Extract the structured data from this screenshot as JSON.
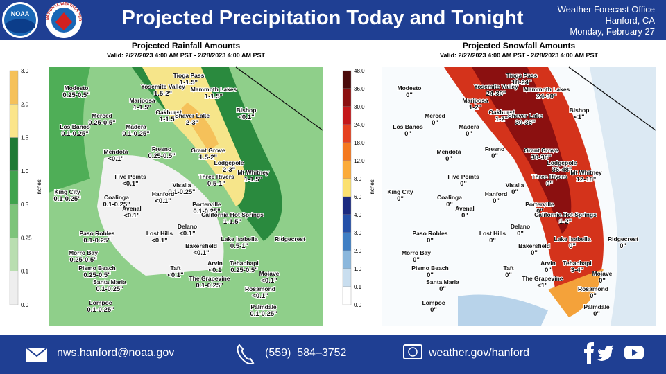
{
  "header": {
    "logos": [
      "NOAA",
      "NATIONAL WEATHER SERVICE"
    ],
    "title": "Projected Precipitation Today and Tonight",
    "office": [
      "Weather Forecast Office",
      "Hanford, CA",
      "Monday, February 27"
    ]
  },
  "maps": [
    {
      "title": "Projected Rainfall Amounts",
      "valid": "Valid: 2/27/2023 4:00 AM PST - 2/28/2023 4:00 AM PST",
      "unit": "Inches",
      "scale": [
        "3.0",
        "2.0",
        "1.5",
        "1.0",
        "0.5",
        "0.25",
        "0.1",
        "0.0"
      ],
      "places": [
        {
          "name": "Tioga Pass",
          "amount": "1-1.5\""
        },
        {
          "name": "Yosemite Valley",
          "amount": "1.5-2\""
        },
        {
          "name": "Mammoth Lakes",
          "amount": "1-1.5\""
        },
        {
          "name": "Modesto",
          "amount": "0.25-0.5\""
        },
        {
          "name": "Mariposa",
          "amount": "1-1.5\""
        },
        {
          "name": "Oakhurst",
          "amount": "1-1.5\""
        },
        {
          "name": "Shaver Lake",
          "amount": "2-3\""
        },
        {
          "name": "Bishop",
          "amount": "<0.1\""
        },
        {
          "name": "Merced",
          "amount": "0.25-0.5\""
        },
        {
          "name": "Los Banos",
          "amount": "0.1-0.25\""
        },
        {
          "name": "Madera",
          "amount": "0.1-0.25\""
        },
        {
          "name": "Mendota",
          "amount": "<0.1\""
        },
        {
          "name": "Fresno",
          "amount": "0.25-0.5\""
        },
        {
          "name": "Grant Grove",
          "amount": "1.5-2\""
        },
        {
          "name": "Lodgepole",
          "amount": "2-3\""
        },
        {
          "name": "Mt Whitney",
          "amount": "1-1.5\""
        },
        {
          "name": "Three Rivers",
          "amount": "0.5-1\""
        },
        {
          "name": "Five Points",
          "amount": "<0.1\""
        },
        {
          "name": "Visalia",
          "amount": "0.1-0.25\""
        },
        {
          "name": "Hanford",
          "amount": "<0.1\""
        },
        {
          "name": "King City",
          "amount": "0.1-0.25\""
        },
        {
          "name": "Coalinga",
          "amount": "0.1-0.25\""
        },
        {
          "name": "Avenal",
          "amount": "<0.1\""
        },
        {
          "name": "Porterville",
          "amount": "0.1-0.25\""
        },
        {
          "name": "California Hot Springs",
          "amount": "1-1.5\""
        },
        {
          "name": "Delano",
          "amount": "<0.1\""
        },
        {
          "name": "Lost Hills",
          "amount": "<0.1\""
        },
        {
          "name": "Lake Isabella",
          "amount": "0.5-1\""
        },
        {
          "name": "Ridgecrest"
        },
        {
          "name": "Paso Robles",
          "amount": "0.1-0.25\""
        },
        {
          "name": "Bakersfield",
          "amount": "<0.1\""
        },
        {
          "name": "Morro Bay",
          "amount": "0.25-0.5\""
        },
        {
          "name": "Arvin",
          "amount": "<0.1"
        },
        {
          "name": "Tehachapi",
          "amount": "0.25-0.5\""
        },
        {
          "name": "Pismo Beach",
          "amount": "0.25-0.5\""
        },
        {
          "name": "Taft",
          "amount": "<0.1\""
        },
        {
          "name": "Mojave",
          "amount": "<0.1\""
        },
        {
          "name": "Santa Maria",
          "amount": "0.1-0.25\""
        },
        {
          "name": "The Grapevine",
          "amount": "0.1-0.25\""
        },
        {
          "name": "Rosamond",
          "amount": "<0.1\""
        },
        {
          "name": "Lompoc",
          "amount": "0.1-0.25\""
        },
        {
          "name": "Palmdale",
          "amount": "0.1-0.25\""
        }
      ]
    },
    {
      "title": "Projected Snowfall Amounts",
      "valid": "Valid: 2/27/2023 4:00 AM PST - 2/28/2023 4:00 AM PST",
      "unit": "Inches",
      "scale": [
        "48.0",
        "36.0",
        "30.0",
        "24.0",
        "18.0",
        "12.0",
        "8.0",
        "6.0",
        "4.0",
        "3.0",
        "2.0",
        "1.0",
        "0.1",
        "0.0"
      ],
      "places": [
        {
          "name": "Tioga Pass",
          "amount": "18-24\""
        },
        {
          "name": "Yosemite Valley",
          "amount": "24-30\""
        },
        {
          "name": "Mammoth Lakes",
          "amount": "24-30\""
        },
        {
          "name": "Modesto",
          "amount": "0\""
        },
        {
          "name": "Mariposa",
          "amount": "1-2\""
        },
        {
          "name": "Oakhurst",
          "amount": "1-2\""
        },
        {
          "name": "Shaver Lake",
          "amount": "30-36\""
        },
        {
          "name": "Bishop",
          "amount": "<1\""
        },
        {
          "name": "Merced",
          "amount": "0\""
        },
        {
          "name": "Los Banos",
          "amount": "0\""
        },
        {
          "name": "Madera",
          "amount": "0\""
        },
        {
          "name": "Mendota",
          "amount": "0\""
        },
        {
          "name": "Fresno",
          "amount": "0\""
        },
        {
          "name": "Grant Grove",
          "amount": "30-36\""
        },
        {
          "name": "Lodgepole",
          "amount": "36-48\""
        },
        {
          "name": "Mt Whitney",
          "amount": "12-18\""
        },
        {
          "name": "Three Rivers",
          "amount": "0\""
        },
        {
          "name": "Five Points",
          "amount": "0\""
        },
        {
          "name": "Visalia",
          "amount": "0\""
        },
        {
          "name": "Hanford",
          "amount": "0\""
        },
        {
          "name": "King City",
          "amount": "0\""
        },
        {
          "name": "Coalinga",
          "amount": "0\""
        },
        {
          "name": "Avenal",
          "amount": "0\""
        },
        {
          "name": "Porterville",
          "amount": "0\""
        },
        {
          "name": "California Hot Springs",
          "amount": "1-2\""
        },
        {
          "name": "Delano",
          "amount": "0\""
        },
        {
          "name": "Lost Hills",
          "amount": "0\""
        },
        {
          "name": "Lake Isabella",
          "amount": "0\""
        },
        {
          "name": "Ridgecrest",
          "amount": "0\""
        },
        {
          "name": "Paso Robles",
          "amount": "0\""
        },
        {
          "name": "Bakersfield",
          "amount": "0\""
        },
        {
          "name": "Morro Bay",
          "amount": "0\""
        },
        {
          "name": "Arvin",
          "amount": "0\""
        },
        {
          "name": "Tehachapi",
          "amount": "3-4\""
        },
        {
          "name": "Pismo Beach",
          "amount": "0\""
        },
        {
          "name": "Taft",
          "amount": "0\""
        },
        {
          "name": "Mojave",
          "amount": "0\""
        },
        {
          "name": "Santa Maria",
          "amount": "0\""
        },
        {
          "name": "The Grapevine",
          "amount": "<1\""
        },
        {
          "name": "Rosamond",
          "amount": "0\""
        },
        {
          "name": "Lompoc",
          "amount": "0\""
        },
        {
          "name": "Palmdale",
          "amount": "0\""
        }
      ]
    }
  ],
  "footer": {
    "email": "nws.hanford@noaa.gov",
    "phone": "(559)  584–3752",
    "website": "weather.gov/hanford"
  }
}
